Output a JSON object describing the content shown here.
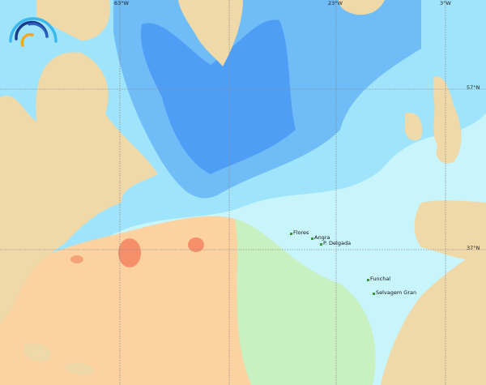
{
  "map": {
    "grid_labels": {
      "lon": [
        "63°W",
        "23°W",
        "3°W"
      ],
      "lat": [
        "57°N",
        "37°N"
      ]
    },
    "places": [
      "Flores",
      "Angra",
      "P. Delgada",
      "Funchal",
      "Selvagem Gran"
    ],
    "colors": {
      "land": "#efd9a8",
      "deep_blue": "#4f9ef5",
      "mid_blue": "#6fbcf7",
      "light_blue": "#9fe4fb",
      "pale": "#d6fbfd",
      "green": "#c8f0c0",
      "orange": "#fbd2a0",
      "red": "#f5906a"
    }
  }
}
